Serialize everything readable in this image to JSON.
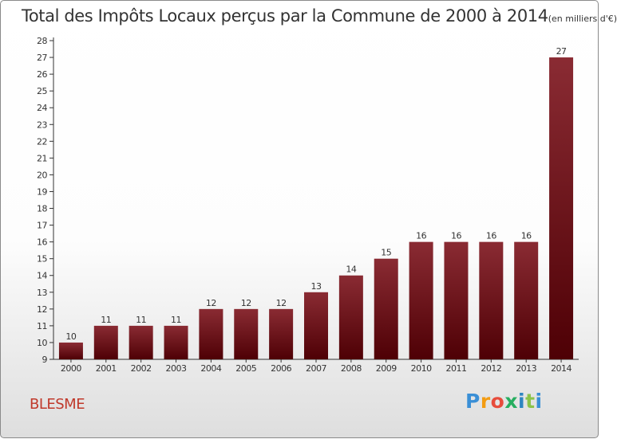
{
  "title": {
    "main": "Total des Impôts Locaux perçus par la Commune de 2000 à 2014",
    "unit": "(en milliers d'€)"
  },
  "commune": "BLESME",
  "logo": {
    "letters": [
      "P",
      "r",
      "o",
      "x",
      "i",
      "t",
      "i"
    ]
  },
  "colors": {
    "bar_top": "#8a2b33",
    "bar_bottom": "#4e0005",
    "axis": "#333333",
    "commune_text": "#c0392b"
  },
  "chart_data": {
    "type": "bar",
    "title": "Total des Impôts Locaux perçus par la Commune de 2000 à 2014 (en milliers d'€)",
    "xlabel": "",
    "ylabel": "",
    "categories": [
      "2000",
      "2001",
      "2002",
      "2003",
      "2004",
      "2005",
      "2006",
      "2007",
      "2008",
      "2009",
      "2010",
      "2011",
      "2012",
      "2013",
      "2014"
    ],
    "values": [
      10,
      11,
      11,
      11,
      12,
      12,
      12,
      13,
      14,
      15,
      16,
      16,
      16,
      16,
      27
    ],
    "ylim": [
      9,
      28
    ],
    "yticks": [
      9,
      10,
      11,
      12,
      13,
      14,
      15,
      16,
      17,
      18,
      19,
      20,
      21,
      22,
      23,
      24,
      25,
      26,
      27,
      28
    ],
    "grid": false,
    "data_labels": true
  }
}
